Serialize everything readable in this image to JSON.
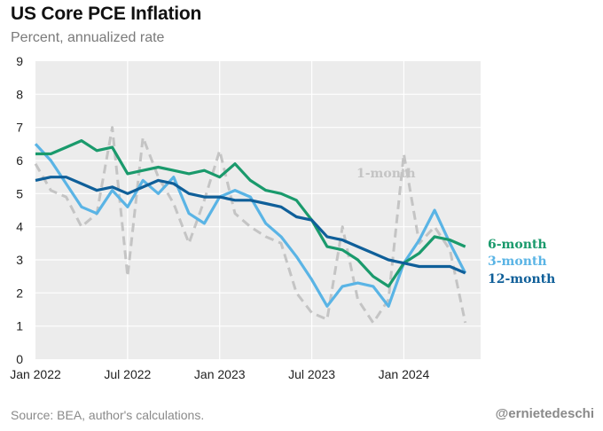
{
  "header": {
    "title": "US Core PCE Inflation",
    "subtitle": "Percent, annualized rate"
  },
  "footer": {
    "source": "Source: BEA, author's calculations.",
    "handle": "@ernietedeschi"
  },
  "colors": {
    "plot_background": "#ececec",
    "grid": "#ffffff",
    "one_month": "#c4c4c4",
    "three_month": "#5ab4e5",
    "six_month": "#1a9a6c",
    "twelve_month": "#0f5f99"
  },
  "chart_data": {
    "type": "line",
    "title": "US Core PCE Inflation",
    "subtitle": "Percent, annualized rate",
    "xlabel": "",
    "ylabel": "",
    "ylim": [
      0,
      9
    ],
    "yticks": [
      "0",
      "1",
      "2",
      "3",
      "4",
      "5",
      "6",
      "7",
      "8",
      "9"
    ],
    "xtick_labels": [
      "Jan 2022",
      "Jul 2022",
      "Jan 2023",
      "Jul 2023",
      "Jan 2024"
    ],
    "grid": true,
    "x": [
      "2022-01",
      "2022-02",
      "2022-03",
      "2022-04",
      "2022-05",
      "2022-06",
      "2022-07",
      "2022-08",
      "2022-09",
      "2022-10",
      "2022-11",
      "2022-12",
      "2023-01",
      "2023-02",
      "2023-03",
      "2023-04",
      "2023-05",
      "2023-06",
      "2023-07",
      "2023-08",
      "2023-09",
      "2023-10",
      "2023-11",
      "2023-12",
      "2024-01",
      "2024-02",
      "2024-03",
      "2024-04",
      "2024-05",
      "2024-06"
    ],
    "series": [
      {
        "name": "1-month",
        "style": "dashed",
        "values": [
          5.9,
          5.1,
          4.9,
          4.0,
          4.4,
          7.0,
          2.5,
          6.7,
          5.5,
          4.7,
          3.5,
          4.8,
          6.3,
          4.4,
          4.0,
          3.7,
          3.5,
          2.0,
          1.4,
          1.2,
          4.0,
          1.8,
          1.1,
          1.8,
          6.2,
          3.5,
          4.0,
          3.3,
          1.1,
          null
        ]
      },
      {
        "name": "3-month",
        "values": [
          6.5,
          6.0,
          5.3,
          4.6,
          4.4,
          5.1,
          4.6,
          5.4,
          5.0,
          5.5,
          4.4,
          4.1,
          4.9,
          5.1,
          4.9,
          4.1,
          3.7,
          3.1,
          2.4,
          1.6,
          2.2,
          2.3,
          2.2,
          1.6,
          2.9,
          3.6,
          4.5,
          3.5,
          2.6,
          null
        ]
      },
      {
        "name": "6-month",
        "values": [
          6.2,
          6.2,
          6.4,
          6.6,
          6.3,
          6.4,
          5.6,
          5.7,
          5.8,
          5.7,
          5.6,
          5.7,
          5.5,
          5.9,
          5.4,
          5.1,
          5.0,
          4.8,
          4.2,
          3.4,
          3.3,
          3.0,
          2.5,
          2.2,
          2.9,
          3.2,
          3.7,
          3.6,
          3.4,
          null
        ]
      },
      {
        "name": "12-month",
        "values": [
          5.4,
          5.5,
          5.5,
          5.3,
          5.1,
          5.2,
          5.0,
          5.2,
          5.4,
          5.3,
          5.0,
          4.9,
          4.9,
          4.8,
          4.8,
          4.7,
          4.6,
          4.3,
          4.2,
          3.7,
          3.6,
          3.4,
          3.2,
          3.0,
          2.9,
          2.8,
          2.8,
          2.8,
          2.6,
          null
        ]
      }
    ],
    "series_labels": [
      "1-month",
      "3-month",
      "6-month",
      "12-month"
    ]
  }
}
